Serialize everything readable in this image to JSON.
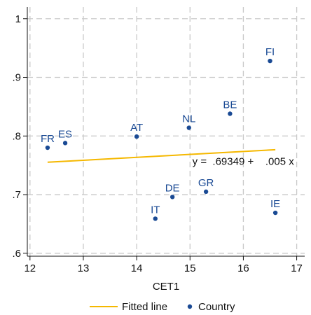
{
  "chart_data": {
    "type": "scatter",
    "xlabel": "CET1",
    "ylabel": "",
    "xlim": [
      11.95,
      17.15
    ],
    "ylim": [
      0.595,
      1.02
    ],
    "xticks": [
      12,
      13,
      14,
      15,
      16,
      17
    ],
    "xtick_labels": [
      "12",
      "13",
      "14",
      "15",
      "16",
      "17"
    ],
    "yticks": [
      0.6,
      0.7,
      0.8,
      0.9,
      1.0
    ],
    "ytick_labels": [
      ".6",
      ".7",
      ".8",
      ".9",
      "1"
    ],
    "grid": true,
    "legend_position": "bottom",
    "colors": {
      "points": "#1a4a94",
      "labels": "#1a4a94",
      "fit_line": "#f5b800",
      "grid": "#c9c9c9",
      "axis": "#111111"
    },
    "series": [
      {
        "name": "Country",
        "type": "scatter",
        "points": [
          {
            "label": "FR",
            "x": 12.33,
            "y": 0.78
          },
          {
            "label": "ES",
            "x": 12.66,
            "y": 0.788
          },
          {
            "label": "AT",
            "x": 14.0,
            "y": 0.799
          },
          {
            "label": "NL",
            "x": 14.98,
            "y": 0.814
          },
          {
            "label": "BE",
            "x": 15.75,
            "y": 0.838
          },
          {
            "label": "FI",
            "x": 16.5,
            "y": 0.928
          },
          {
            "label": "DE",
            "x": 14.67,
            "y": 0.696
          },
          {
            "label": "GR",
            "x": 15.3,
            "y": 0.705
          },
          {
            "label": "IT",
            "x": 14.35,
            "y": 0.659
          },
          {
            "label": "IE",
            "x": 16.6,
            "y": 0.669
          }
        ]
      },
      {
        "name": "Fitted line",
        "type": "line",
        "x": [
          12.33,
          16.6
        ],
        "y": [
          0.7552,
          0.7766
        ]
      }
    ],
    "annotations": [
      {
        "text": "y =  .69349 +    .005 x"
      }
    ],
    "legend": [
      "Fitted line",
      "Country"
    ]
  }
}
